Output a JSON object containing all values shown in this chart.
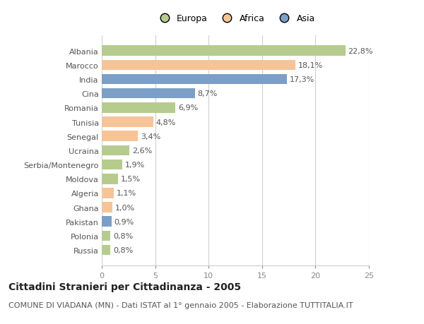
{
  "countries": [
    "Albania",
    "Marocco",
    "India",
    "Cina",
    "Romania",
    "Tunisia",
    "Senegal",
    "Ucraina",
    "Serbia/Montenegro",
    "Moldova",
    "Algeria",
    "Ghana",
    "Pakistan",
    "Polonia",
    "Russia"
  ],
  "values": [
    22.8,
    18.1,
    17.3,
    8.7,
    6.9,
    4.8,
    3.4,
    2.6,
    1.9,
    1.5,
    1.1,
    1.0,
    0.9,
    0.8,
    0.8
  ],
  "labels": [
    "22,8%",
    "18,1%",
    "17,3%",
    "8,7%",
    "6,9%",
    "4,8%",
    "3,4%",
    "2,6%",
    "1,9%",
    "1,5%",
    "1,1%",
    "1,0%",
    "0,9%",
    "0,8%",
    "0,8%"
  ],
  "continents": [
    "Europa",
    "Africa",
    "Asia",
    "Asia",
    "Europa",
    "Africa",
    "Africa",
    "Europa",
    "Europa",
    "Europa",
    "Africa",
    "Africa",
    "Asia",
    "Europa",
    "Europa"
  ],
  "colors": {
    "Europa": "#b5cc8e",
    "Africa": "#f5c497",
    "Asia": "#7b9fc7"
  },
  "xlim": [
    0,
    25
  ],
  "xticks": [
    0,
    5,
    10,
    15,
    20,
    25
  ],
  "title": "Cittadini Stranieri per Cittadinanza - 2005",
  "subtitle": "COMUNE DI VIADANA (MN) - Dati ISTAT al 1° gennaio 2005 - Elaborazione TUTTITALIA.IT",
  "background_color": "#ffffff",
  "grid_color": "#d0d0d0",
  "bar_height": 0.72,
  "label_fontsize": 8,
  "tick_fontsize": 8,
  "title_fontsize": 10,
  "subtitle_fontsize": 8
}
